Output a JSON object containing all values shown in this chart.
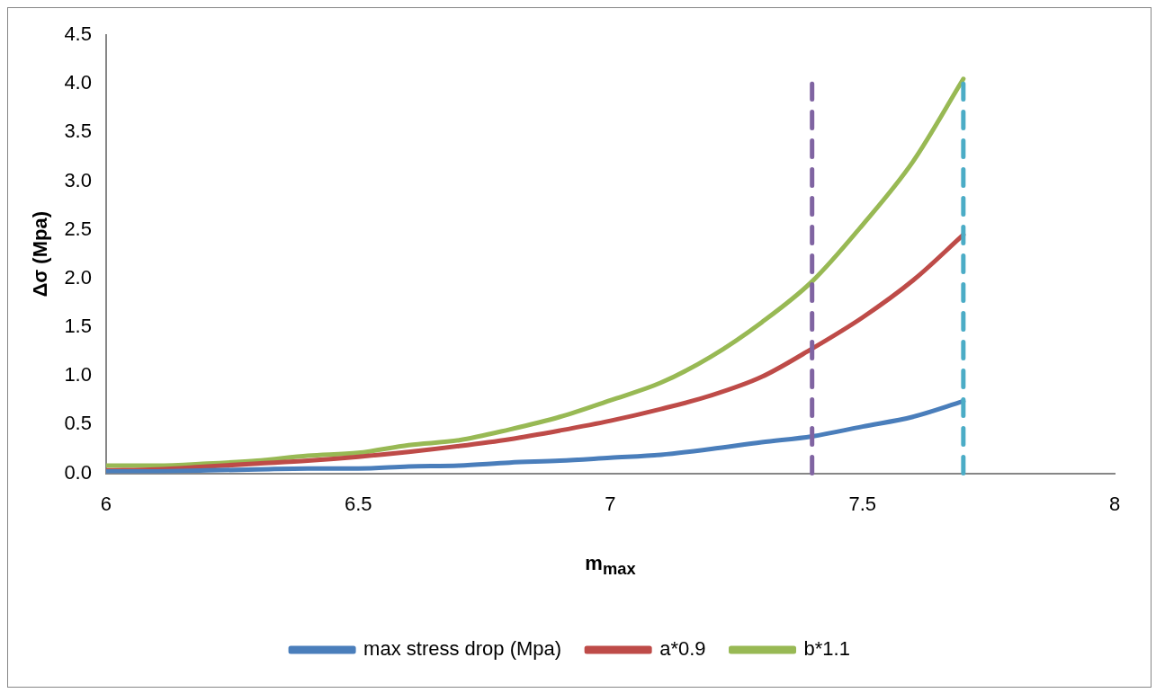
{
  "chart_data": {
    "type": "line",
    "xlabel": "m$_{max}$",
    "ylabel": "Δσ (Mpa)",
    "x": [
      6.0,
      6.1,
      6.2,
      6.3,
      6.4,
      6.5,
      6.6,
      6.7,
      6.8,
      6.9,
      7.0,
      7.1,
      7.2,
      7.3,
      7.4,
      7.5,
      7.6,
      7.7
    ],
    "series": [
      {
        "name": "max stress drop (Mpa)",
        "color": "#4a7ebb",
        "values": [
          0.02,
          0.02,
          0.03,
          0.04,
          0.05,
          0.05,
          0.07,
          0.08,
          0.11,
          0.13,
          0.16,
          0.19,
          0.25,
          0.32,
          0.38,
          0.48,
          0.58,
          0.74
        ]
      },
      {
        "name": "a*0.9",
        "color": "#be4b48",
        "values": [
          0.03,
          0.04,
          0.07,
          0.1,
          0.13,
          0.17,
          0.22,
          0.28,
          0.35,
          0.44,
          0.54,
          0.66,
          0.8,
          0.99,
          1.28,
          1.6,
          1.98,
          2.45
        ]
      },
      {
        "name": "b*1.1",
        "color": "#98b954",
        "values": [
          0.08,
          0.08,
          0.1,
          0.13,
          0.18,
          0.21,
          0.29,
          0.34,
          0.45,
          0.58,
          0.75,
          0.93,
          1.2,
          1.55,
          1.97,
          2.55,
          3.2,
          4.05
        ]
      }
    ],
    "xlim": [
      6,
      8
    ],
    "xticks": [
      6,
      6.5,
      7,
      7.5,
      8
    ],
    "ylim": [
      0,
      4.5
    ],
    "yticks": [
      {
        "value": 0,
        "label": "0.0"
      },
      {
        "value": 0.5,
        "label": "0.5"
      },
      {
        "value": 1,
        "label": "1.0"
      },
      {
        "value": 1.5,
        "label": "1.5"
      },
      {
        "value": 2,
        "label": "2.0"
      },
      {
        "value": 2.5,
        "label": "2.5"
      },
      {
        "value": 3,
        "label": "3.0"
      },
      {
        "value": 3.5,
        "label": "3.5"
      },
      {
        "value": 4,
        "label": "4.0"
      },
      {
        "value": 4.5,
        "label": "4.5"
      }
    ],
    "ref_lines": [
      {
        "axis": "x",
        "value": 7.4,
        "color": "#8064a2",
        "line_style": "dashed"
      },
      {
        "axis": "x",
        "value": 7.7,
        "color": "#4bacc6",
        "line_style": "dashed"
      }
    ],
    "grid": false,
    "legend": "bottom",
    "marker": "none",
    "line_style": "solid"
  }
}
